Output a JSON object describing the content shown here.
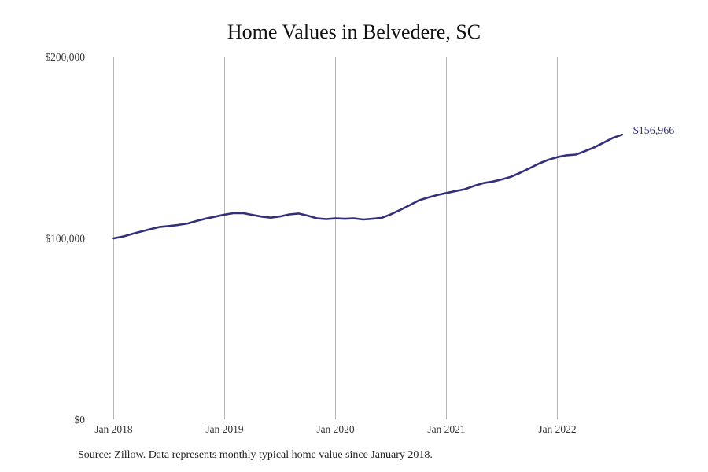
{
  "chart_data": {
    "type": "line",
    "title": "Home Values in Belvedere, SC",
    "xlabel": "",
    "ylabel": "",
    "x_start": "2018-01",
    "x_step": "month",
    "xlim": [
      "2018-01",
      "2022-12"
    ],
    "ylim": [
      0,
      200000
    ],
    "y_ticks": [
      {
        "value": 0,
        "label": "$0"
      },
      {
        "value": 100000,
        "label": "$100,000"
      },
      {
        "value": 200000,
        "label": "$200,000"
      }
    ],
    "x_ticks": [
      {
        "value": "2018-01",
        "label": "Jan 2018"
      },
      {
        "value": "2019-01",
        "label": "Jan 2019"
      },
      {
        "value": "2020-01",
        "label": "Jan 2020"
      },
      {
        "value": "2021-01",
        "label": "Jan 2021"
      },
      {
        "value": "2022-01",
        "label": "Jan 2022"
      }
    ],
    "grid": "vertical-at-x-ticks",
    "line_color": "#33307a",
    "end_label": "$156,966",
    "series": [
      {
        "values": [
          99800,
          100800,
          102200,
          103600,
          104900,
          106100,
          106600,
          107200,
          108000,
          109400,
          110700,
          111800,
          112900,
          113700,
          113700,
          112700,
          111800,
          111200,
          111900,
          113000,
          113500,
          112300,
          110800,
          110400,
          110800,
          110600,
          110800,
          110200,
          110600,
          111100,
          113100,
          115500,
          118000,
          120700,
          122300,
          123700,
          124800,
          125900,
          126900,
          128700,
          130300,
          131100,
          132300,
          133800,
          136000,
          138500,
          141000,
          143100,
          144600,
          145600,
          146000,
          147900,
          150000,
          152600,
          155200,
          156966
        ]
      }
    ]
  },
  "footer": {
    "source": "Source: Zillow. Data represents monthly typical home value since January 2018."
  }
}
